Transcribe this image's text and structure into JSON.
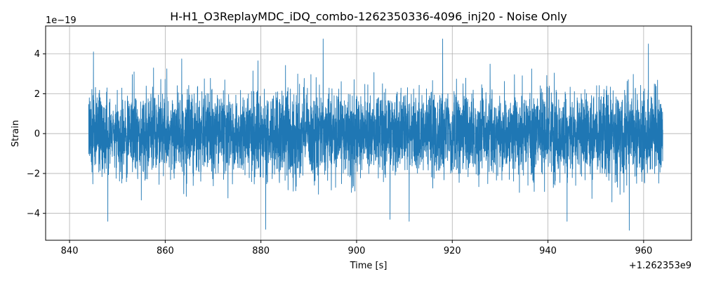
{
  "chart_data": {
    "type": "line",
    "title": "H-H1_O3ReplayMDC_iDQ_combo-1262350336-4096_inj20 - Noise Only",
    "xlabel": "Time [s]",
    "ylabel": "Strain",
    "x_offset_label": "+1.262353e9",
    "y_scale_label": "1e−19",
    "x_offset": 1262353000,
    "y_scale": 1e-19,
    "xlim": [
      835,
      970
    ],
    "ylim": [
      -5.35,
      5.4
    ],
    "x_ticks": [
      840,
      860,
      880,
      900,
      920,
      940,
      960
    ],
    "x_tick_labels": [
      "840",
      "860",
      "880",
      "900",
      "920",
      "940",
      "960"
    ],
    "y_ticks": [
      -4,
      -2,
      0,
      2,
      4
    ],
    "y_tick_labels": [
      "−4",
      "−2",
      "0",
      "2",
      "4"
    ],
    "grid": true,
    "series": [
      {
        "color": "#1f77b4",
        "x_start": 844,
        "x_end": 964,
        "stats": {
          "typical_abs_max": 2.5,
          "max": 4.8,
          "min": -4.8
        },
        "notable_peaks": [
          {
            "x": 845,
            "y": 4.1
          },
          {
            "x": 893,
            "y": 4.75
          },
          {
            "x": 918,
            "y": 4.75
          },
          {
            "x": 961,
            "y": 4.5
          },
          {
            "x": 848,
            "y": -4.4
          },
          {
            "x": 881,
            "y": -4.8
          },
          {
            "x": 907,
            "y": -4.3
          },
          {
            "x": 911,
            "y": -4.4
          },
          {
            "x": 944,
            "y": -4.4
          },
          {
            "x": 957,
            "y": -4.85
          }
        ]
      }
    ]
  }
}
